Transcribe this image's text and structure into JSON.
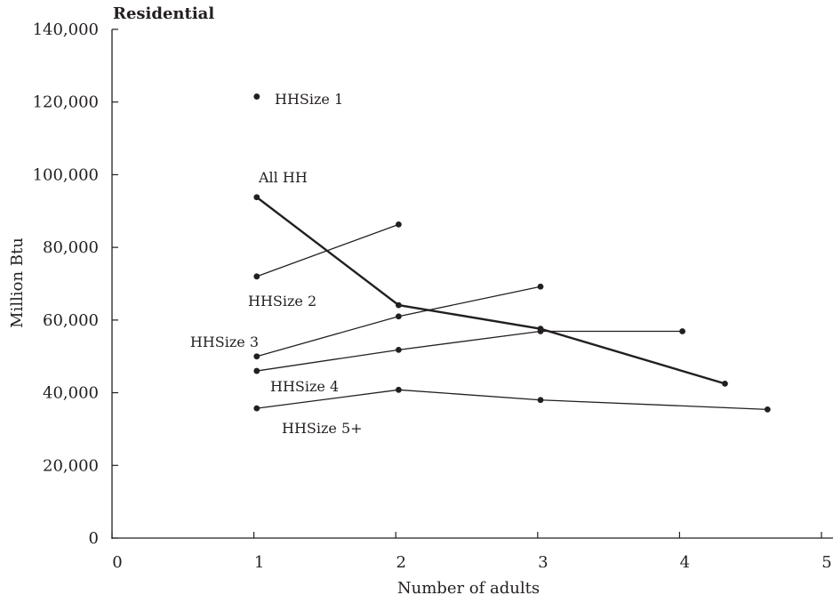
{
  "chart_data": {
    "type": "line",
    "title": "Residential",
    "xlabel": "Number of adults",
    "ylabel": "Million Btu",
    "xlim": [
      0,
      5
    ],
    "ylim": [
      0,
      140000
    ],
    "x_ticks": [
      "0",
      "1",
      "2",
      "3",
      "4",
      "5"
    ],
    "y_ticks": [
      "0",
      "20,000",
      "40,000",
      "60,000",
      "80,000",
      "100,000",
      "120,000",
      "140,000"
    ],
    "grid": false,
    "legend": "direct labels",
    "series": [
      {
        "name": "HHSize 1",
        "x": [
          1.02
        ],
        "y": [
          121500
        ],
        "bold": false
      },
      {
        "name": "HHSize 2",
        "x": [
          1.02,
          2.02
        ],
        "y": [
          72000,
          86300
        ],
        "bold": false
      },
      {
        "name": "HHSize 3",
        "x": [
          1.02,
          2.02,
          3.02
        ],
        "y": [
          50000,
          61000,
          69200
        ],
        "bold": false
      },
      {
        "name": "HHSize 4",
        "x": [
          1.02,
          2.02,
          3.02,
          4.02
        ],
        "y": [
          46000,
          51800,
          56900,
          56900
        ],
        "bold": false
      },
      {
        "name": "HHSize 5+",
        "x": [
          1.02,
          2.02,
          3.02,
          4.62
        ],
        "y": [
          35700,
          40800,
          38000,
          35400
        ],
        "bold": false
      },
      {
        "name": "All HH",
        "x": [
          1.02,
          2.02,
          3.02,
          4.32
        ],
        "y": [
          93800,
          64100,
          57600,
          42500
        ],
        "bold": true
      }
    ]
  }
}
